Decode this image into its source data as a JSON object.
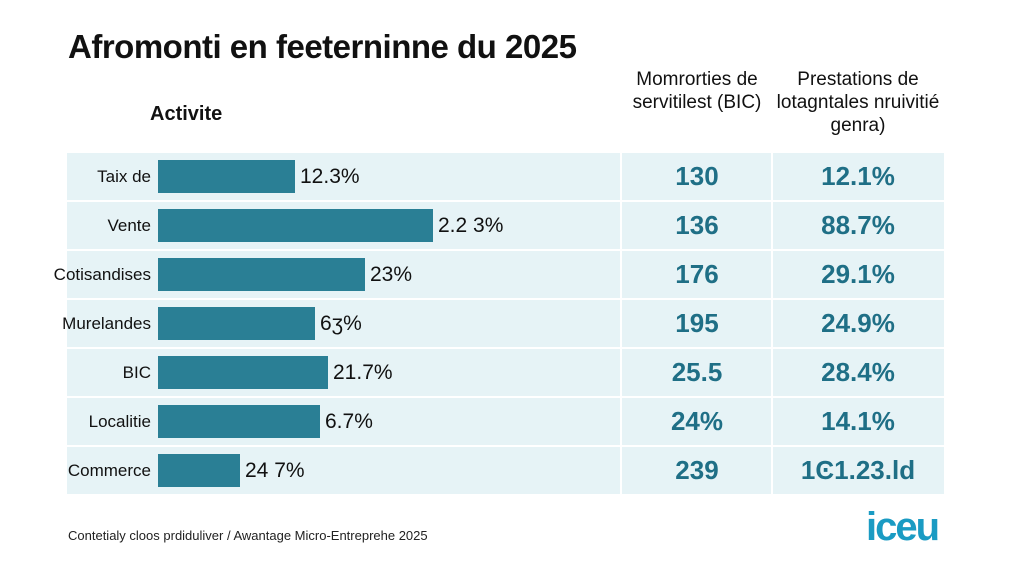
{
  "header": {
    "title": "Afromonti en feeterninne du 2025",
    "column_1": "Activite",
    "column_2": "Momrorties de servitilest (BIC)",
    "column_3": "Prestations de lotagntales nruivitié genra)"
  },
  "table": {
    "rows": [
      [
        "Taix de",
        "12.3%",
        "130",
        "12.1%"
      ],
      [
        "Vente",
        "2.2 3%",
        "136",
        "88.7%"
      ],
      [
        "Cotisandises",
        "23%",
        "176",
        "29.1%"
      ],
      [
        "Murelandes",
        "6ʒ%",
        "195",
        "24.9%"
      ],
      [
        "BIC",
        "21.7%",
        "25.5",
        "28.4%"
      ],
      [
        "Localitie",
        "6.7%",
        "24%",
        "14.1%"
      ],
      [
        "Commerce",
        "24 7%",
        "239",
        "1Ͼ1.23.ld"
      ]
    ]
  },
  "footer": {
    "source": "Contetialy cloos prdiduliver / Awantage Micro-Entreprehe 2025",
    "logo": "iceu"
  }
}
